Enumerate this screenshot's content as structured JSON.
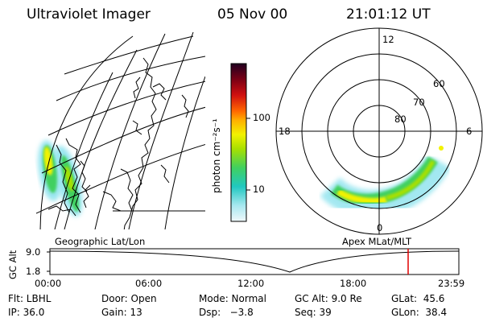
{
  "header": {
    "instrument": "Ultraviolet Imager",
    "date": "05 Nov 00",
    "time": "21:01:12 UT"
  },
  "colorbar": {
    "unit_label": "photon cm⁻²s⁻¹",
    "tick_labels": [
      "100",
      "10"
    ],
    "colors": [
      "#2a0020",
      "#7a0015",
      "#d01010",
      "#ff6600",
      "#ffb000",
      "#f2f200",
      "#a8e000",
      "#44d060",
      "#22c8c0",
      "#9ae6f0",
      "#e8f6fa"
    ]
  },
  "left_panel": {
    "caption": "Geographic Lat/Lon",
    "view": "map"
  },
  "right_panel": {
    "caption": "Apex MLat/MLT",
    "mlt_labels": {
      "top": "12",
      "left": "18",
      "right": "6",
      "bottom": "0"
    },
    "lat_labels": [
      "60",
      "70",
      "80"
    ]
  },
  "timeline": {
    "axis_label": "GC Alt",
    "y_labels": [
      "9.0",
      "1.8"
    ],
    "x_labels": [
      "00:00",
      "06:00",
      "12:00",
      "18:00",
      "23:59"
    ],
    "current_time_color": "#e00000"
  },
  "info_rows": [
    [
      "Flt: LBHL",
      "Door: Open",
      "Mode: Normal",
      "GC Alt: 9.0 Re",
      "GLat:  45.6"
    ],
    [
      "IP: 36.0",
      "Gain: 13",
      "Dsp:   −3.8",
      "Seq: 39",
      "GLon:  38.4"
    ]
  ]
}
